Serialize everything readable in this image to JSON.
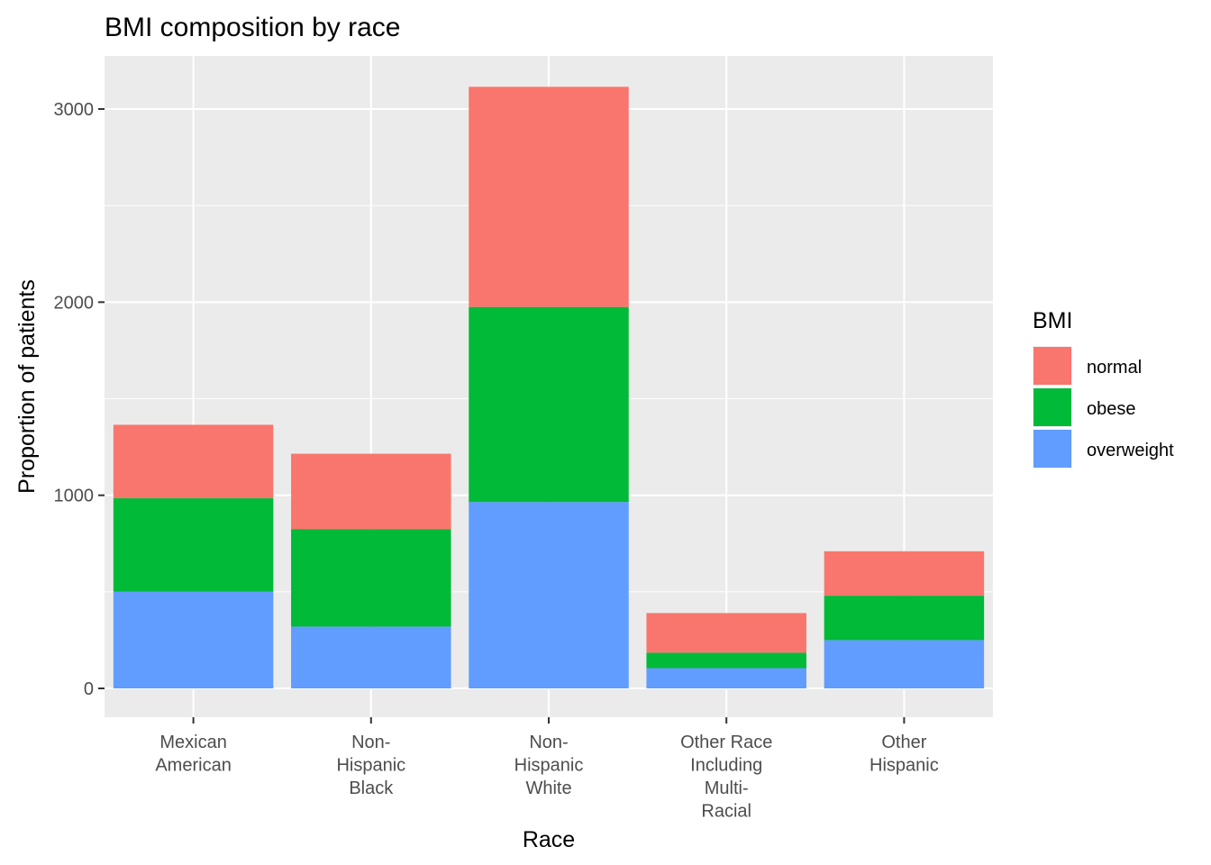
{
  "chart_data": {
    "type": "bar",
    "stacked": true,
    "title": "BMI composition by race",
    "xlabel": "Race",
    "ylabel": "Proportion of patients",
    "ylim": [
      0,
      3200
    ],
    "yticks": [
      0,
      1000,
      2000,
      3000
    ],
    "grid": true,
    "legend_position": "right",
    "legend_title": "BMI",
    "categories": [
      [
        "Mexican",
        "American"
      ],
      [
        "Non-",
        "Hispanic",
        "Black"
      ],
      [
        "Non-",
        "Hispanic",
        "White"
      ],
      [
        "Other Race",
        "Including",
        "Multi-",
        "Racial"
      ],
      [
        "Other",
        "Hispanic"
      ]
    ],
    "series": [
      {
        "name": "overweight",
        "color": "#619CFF",
        "values": [
          500,
          320,
          965,
          105,
          250
        ]
      },
      {
        "name": "obese",
        "color": "#00BA38",
        "values": [
          485,
          505,
          1010,
          80,
          230
        ]
      },
      {
        "name": "normal",
        "color": "#F8766D",
        "values": [
          380,
          390,
          1140,
          205,
          230
        ]
      }
    ],
    "legend_order": [
      "normal",
      "obese",
      "overweight"
    ],
    "panel_color": "#EBEBEB",
    "grid_color": "#FFFFFF"
  }
}
